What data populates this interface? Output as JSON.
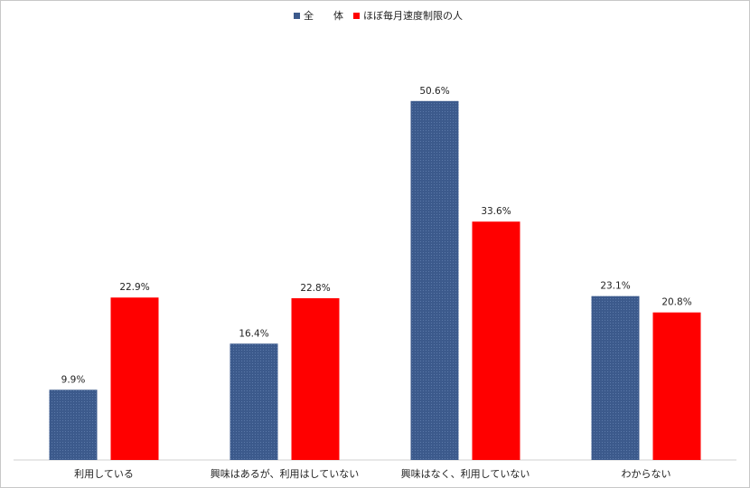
{
  "chart_data": {
    "type": "bar",
    "categories": [
      "利用している",
      "興味はあるが、利用はしていない",
      "興味はなく、利用していない",
      "わからない"
    ],
    "series": [
      {
        "name": "全　　体",
        "color": "#3c5a8c",
        "values": [
          9.9,
          16.4,
          50.6,
          23.1
        ],
        "labels": [
          "9.9%",
          "16.4%",
          "50.6%",
          "23.1%"
        ]
      },
      {
        "name": "ほぼ毎月速度制限の人",
        "color": "#ff0000",
        "values": [
          22.9,
          22.8,
          33.6,
          20.8
        ],
        "labels": [
          "22.9%",
          "22.8%",
          "33.6%",
          "20.8%"
        ]
      }
    ],
    "ylim": [
      0,
      55
    ],
    "title": "",
    "xlabel": "",
    "ylabel": "",
    "legend": "top-center",
    "grid": false
  }
}
